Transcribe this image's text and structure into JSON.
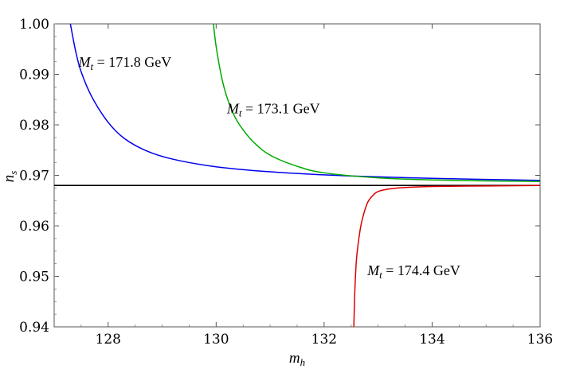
{
  "chart_data": {
    "type": "line",
    "title": "",
    "xlabel": "m",
    "xlabel_sub": "h",
    "ylabel": "n",
    "ylabel_sub": "s",
    "xlim": [
      127,
      136
    ],
    "ylim": [
      0.94,
      1.0
    ],
    "xticks": [
      128,
      130,
      132,
      134,
      136
    ],
    "xtick_labels": [
      "128",
      "130",
      "132",
      "134",
      "136"
    ],
    "yticks": [
      0.94,
      0.95,
      0.96,
      0.97,
      0.98,
      0.99,
      1.0
    ],
    "ytick_labels": [
      "0.94",
      "0.95",
      "0.96",
      "0.97",
      "0.98",
      "0.99",
      "1.00"
    ],
    "reference_line": {
      "y": 0.968,
      "color": "#000000"
    },
    "series": [
      {
        "name": "M_t = 171.8 GeV",
        "label_main": "M",
        "label_sub": "t",
        "label_rest": " = 171.8 GeV",
        "color": "#0000ee",
        "x": [
          127.3,
          127.4,
          127.5,
          127.7,
          128.0,
          128.3,
          128.7,
          129.2,
          130.0,
          131.0,
          132.0,
          133.0,
          134.0,
          135.0,
          136.0
        ],
        "y": [
          1.0,
          0.9945,
          0.9905,
          0.9855,
          0.9805,
          0.9773,
          0.9749,
          0.9732,
          0.9717,
          0.9707,
          0.9701,
          0.9697,
          0.9694,
          0.9692,
          0.969
        ]
      },
      {
        "name": "M_t = 173.1 GeV",
        "label_main": "M",
        "label_sub": "t",
        "label_rest": " = 173.1 GeV",
        "color": "#00aa00",
        "x": [
          129.95,
          130.0,
          130.1,
          130.2,
          130.35,
          130.5,
          130.7,
          131.0,
          131.5,
          132.0,
          133.0,
          134.0,
          135.0,
          136.0
        ],
        "y": [
          1.0,
          0.9955,
          0.9895,
          0.9855,
          0.9815,
          0.979,
          0.9765,
          0.974,
          0.9718,
          0.9705,
          0.9695,
          0.9691,
          0.9689,
          0.9688
        ]
      },
      {
        "name": "M_t = 174.4 GeV",
        "label_main": "M",
        "label_sub": "t",
        "label_rest": " = 174.4 GeV",
        "color": "#dd0000",
        "x": [
          132.55,
          132.57,
          132.6,
          132.65,
          132.7,
          132.8,
          132.9,
          133.0,
          133.2,
          133.5,
          134.0,
          135.0,
          136.0
        ],
        "y": [
          0.94,
          0.9475,
          0.9535,
          0.958,
          0.961,
          0.9645,
          0.966,
          0.9668,
          0.9673,
          0.9676,
          0.9678,
          0.9679,
          0.968
        ]
      }
    ],
    "annotations": [
      {
        "series": 0,
        "x": 127.45,
        "y": 0.9915
      },
      {
        "series": 1,
        "x": 130.2,
        "y": 0.9823
      },
      {
        "series": 2,
        "x": 132.8,
        "y": 0.9502
      }
    ]
  }
}
